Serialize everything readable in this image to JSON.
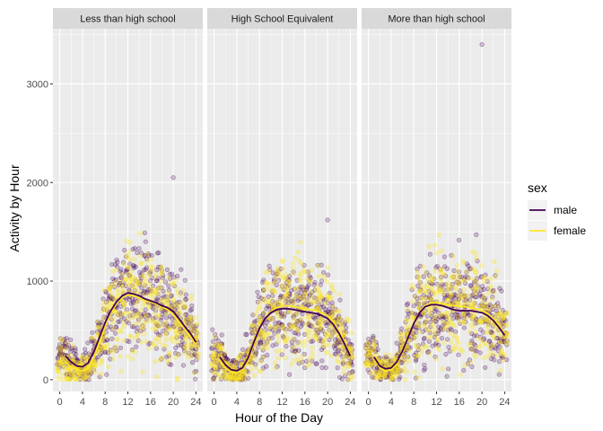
{
  "chart_data": {
    "type": "scatter",
    "xlabel": "Hour of the Day",
    "ylabel": "Activity by Hour",
    "xlim": [
      -1.2,
      25.2
    ],
    "ylim": [
      -120,
      3560
    ],
    "x_ticks": [
      0,
      4,
      8,
      12,
      16,
      20,
      24
    ],
    "x_tick_labels": [
      "0",
      "4",
      "8",
      "12",
      "16",
      "20",
      "24"
    ],
    "y_ticks": [
      0,
      1000,
      2000,
      3000
    ],
    "y_tick_labels": [
      "0",
      "1000",
      "2000",
      "3000"
    ],
    "grid": true,
    "legend": {
      "title": "sex",
      "position": "right",
      "entries": [
        {
          "label": "male",
          "color": "#440154"
        },
        {
          "label": "female",
          "color": "#FDE725"
        }
      ]
    },
    "panels": [
      {
        "label": "Less than high school",
        "smooth": [
          {
            "series": "male",
            "x": [
              1,
              2,
              3,
              4,
              5,
              6,
              7,
              8,
              9,
              10,
              11,
              12,
              13,
              14,
              15,
              16,
              17,
              18,
              19,
              20,
              21,
              22,
              23,
              24
            ],
            "y": [
              240,
              180,
              140,
              130,
              170,
              280,
              430,
              580,
              700,
              790,
              850,
              880,
              870,
              850,
              820,
              800,
              780,
              750,
              730,
              690,
              620,
              540,
              470,
              380
            ]
          },
          {
            "series": "female",
            "x": [
              1,
              2,
              3,
              4,
              5,
              6,
              7,
              8,
              9,
              10,
              11,
              12,
              13,
              14,
              15,
              16,
              17,
              18,
              19,
              20,
              21,
              22,
              23,
              24
            ],
            "y": [
              180,
              130,
              100,
              90,
              120,
              220,
              380,
              540,
              680,
              770,
              830,
              860,
              850,
              830,
              810,
              790,
              770,
              740,
              710,
              660,
              590,
              510,
              440,
              360
            ]
          }
        ],
        "scatter_extremes": {
          "max": 2050
        }
      },
      {
        "label": "High School Equivalent",
        "smooth": [
          {
            "series": "male",
            "x": [
              1,
              2,
              3,
              4,
              5,
              6,
              7,
              8,
              9,
              10,
              11,
              12,
              13,
              14,
              15,
              16,
              17,
              18,
              19,
              20,
              21,
              22,
              23,
              24
            ],
            "y": [
              230,
              150,
              100,
              90,
              120,
              220,
              380,
              520,
              620,
              680,
              710,
              720,
              720,
              710,
              700,
              690,
              680,
              670,
              650,
              620,
              560,
              470,
              360,
              240
            ]
          },
          {
            "series": "female",
            "x": [
              1,
              2,
              3,
              4,
              5,
              6,
              7,
              8,
              9,
              10,
              11,
              12,
              13,
              14,
              15,
              16,
              17,
              18,
              19,
              20,
              21,
              22,
              23,
              24
            ],
            "y": [
              200,
              120,
              80,
              70,
              100,
              200,
              360,
              510,
              620,
              690,
              730,
              750,
              750,
              740,
              730,
              720,
              710,
              700,
              680,
              650,
              590,
              490,
              380,
              260
            ]
          }
        ],
        "scatter_extremes": {
          "max": 1620
        }
      },
      {
        "label": "More than high school",
        "smooth": [
          {
            "series": "male",
            "x": [
              1,
              2,
              3,
              4,
              5,
              6,
              7,
              8,
              9,
              10,
              11,
              12,
              13,
              14,
              15,
              16,
              17,
              18,
              19,
              20,
              21,
              22,
              23,
              24
            ],
            "y": [
              230,
              140,
              110,
              120,
              180,
              290,
              430,
              570,
              680,
              740,
              760,
              760,
              750,
              730,
              710,
              700,
              700,
              700,
              690,
              680,
              650,
              600,
              530,
              450
            ]
          },
          {
            "series": "female",
            "x": [
              1,
              2,
              3,
              4,
              5,
              6,
              7,
              8,
              9,
              10,
              11,
              12,
              13,
              14,
              15,
              16,
              17,
              18,
              19,
              20,
              21,
              22,
              23,
              24
            ],
            "y": [
              210,
              120,
              90,
              100,
              160,
              280,
              430,
              580,
              690,
              750,
              780,
              780,
              770,
              760,
              750,
              740,
              740,
              730,
              720,
              700,
              670,
              620,
              550,
              470
            ]
          }
        ],
        "scatter_extremes": {
          "max": 3400
        }
      }
    ]
  }
}
